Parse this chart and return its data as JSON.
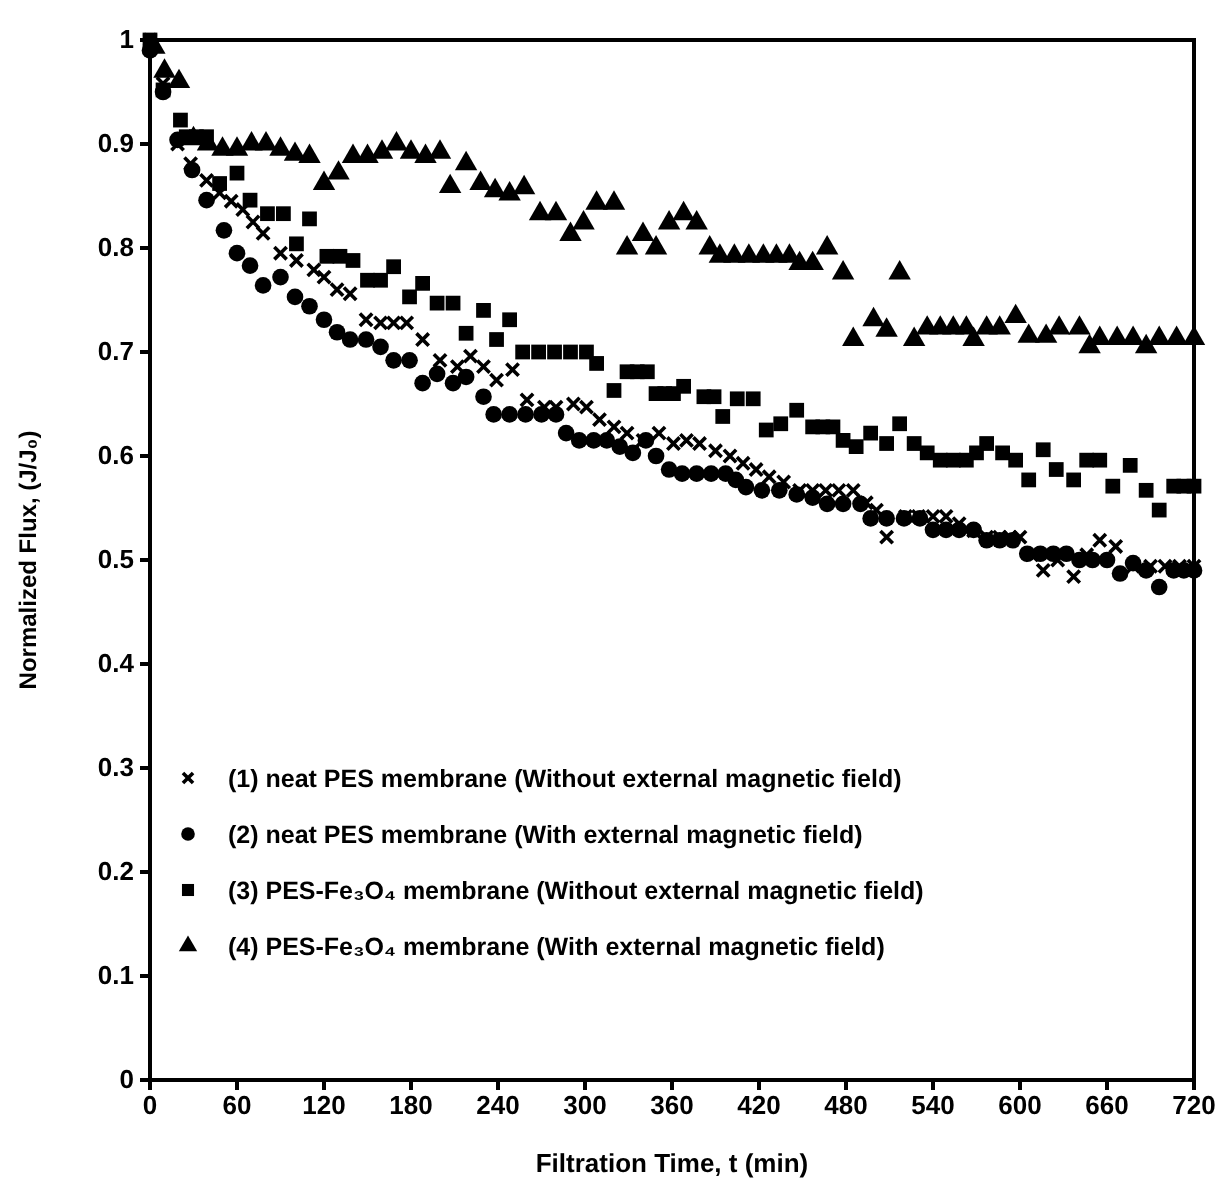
{
  "chart_data": {
    "type": "scatter",
    "xlabel": "Filtration Time, t (min)",
    "ylabel": "Normalized Flux, (J/J₀)",
    "xlim": [
      0,
      720
    ],
    "xticks": [
      0,
      60,
      120,
      180,
      240,
      300,
      360,
      420,
      480,
      540,
      600,
      660,
      720
    ],
    "ylim": [
      0,
      1
    ],
    "yticks": [
      0,
      0.1,
      0.2,
      0.3,
      0.4,
      0.5,
      0.6,
      0.7,
      0.8,
      0.9,
      1
    ],
    "grid": false,
    "legend": "bottom left",
    "series": [
      {
        "name": "(1) neat PES membrane (Without external magnetic field)",
        "color": "#000000",
        "marker": "cross",
        "x": [
          0,
          9,
          19,
          28,
          39,
          48,
          56,
          64,
          71,
          78,
          90,
          101,
          113,
          120,
          129,
          138,
          149,
          159,
          168,
          177,
          188,
          200,
          212,
          221,
          230,
          239,
          250,
          260,
          272,
          280,
          292,
          301,
          310,
          320,
          329,
          340,
          351,
          361,
          370,
          379,
          390,
          400,
          409,
          418,
          427,
          437,
          448,
          457,
          466,
          475,
          485,
          494,
          501,
          508,
          521,
          530,
          540,
          549,
          558,
          568,
          577,
          586,
          593,
          600,
          608,
          616,
          626,
          637,
          646,
          655,
          666,
          678,
          690,
          700,
          710,
          720
        ],
        "values": [
          1,
          0.958,
          0.9,
          0.881,
          0.865,
          0.853,
          0.845,
          0.837,
          0.825,
          0.814,
          0.795,
          0.788,
          0.779,
          0.772,
          0.76,
          0.756,
          0.731,
          0.728,
          0.728,
          0.728,
          0.712,
          0.692,
          0.686,
          0.696,
          0.686,
          0.673,
          0.683,
          0.654,
          0.647,
          0.647,
          0.65,
          0.647,
          0.635,
          0.628,
          0.622,
          0.615,
          0.622,
          0.612,
          0.615,
          0.612,
          0.605,
          0.6,
          0.593,
          0.587,
          0.58,
          0.575,
          0.567,
          0.567,
          0.567,
          0.567,
          0.567,
          0.555,
          0.548,
          0.522,
          0.542,
          0.542,
          0.542,
          0.542,
          0.535,
          0.528,
          0.522,
          0.522,
          0.522,
          0.522,
          0.505,
          0.49,
          0.5,
          0.484,
          0.505,
          0.519,
          0.513,
          0.494,
          0.494,
          0.494,
          0.494,
          0.494
        ]
      },
      {
        "name": "(2) neat PES membrane (With external magnetic field)",
        "color": "#000000",
        "marker": "circle",
        "x": [
          0,
          9,
          19,
          29,
          39,
          51,
          60,
          69,
          78,
          90,
          100,
          110,
          120,
          129,
          138,
          149,
          159,
          168,
          179,
          188,
          198,
          209,
          218,
          230,
          237,
          248,
          259,
          270,
          280,
          287,
          296,
          306,
          315,
          324,
          333,
          342,
          349,
          358,
          367,
          377,
          387,
          397,
          404,
          411,
          422,
          434,
          446,
          457,
          467,
          478,
          490,
          497,
          508,
          520,
          531,
          540,
          549,
          558,
          568,
          577,
          586,
          595,
          605,
          614,
          623,
          632,
          641,
          650,
          660,
          669,
          678,
          687,
          696,
          706,
          713,
          720
        ],
        "values": [
          0.99,
          0.95,
          0.904,
          0.875,
          0.846,
          0.817,
          0.795,
          0.783,
          0.764,
          0.772,
          0.753,
          0.744,
          0.731,
          0.719,
          0.712,
          0.712,
          0.705,
          0.692,
          0.692,
          0.67,
          0.679,
          0.67,
          0.676,
          0.657,
          0.64,
          0.64,
          0.64,
          0.64,
          0.64,
          0.622,
          0.615,
          0.615,
          0.615,
          0.609,
          0.603,
          0.615,
          0.6,
          0.587,
          0.583,
          0.583,
          0.583,
          0.583,
          0.577,
          0.57,
          0.567,
          0.567,
          0.563,
          0.56,
          0.554,
          0.554,
          0.554,
          0.54,
          0.54,
          0.54,
          0.54,
          0.529,
          0.529,
          0.529,
          0.529,
          0.519,
          0.519,
          0.519,
          0.506,
          0.506,
          0.506,
          0.506,
          0.5,
          0.5,
          0.5,
          0.487,
          0.497,
          0.49,
          0.474,
          0.49,
          0.49,
          0.49
        ]
      },
      {
        "name": "(3) PES-Fe₃O₄ membrane (Without external magnetic field)",
        "color": "#000000",
        "marker": "square",
        "x": [
          0,
          9,
          21,
          25,
          32,
          39,
          48,
          60,
          69,
          81,
          92,
          101,
          110,
          122,
          131,
          140,
          150,
          159,
          168,
          179,
          188,
          198,
          209,
          218,
          230,
          239,
          248,
          257,
          268,
          279,
          290,
          301,
          308,
          320,
          329,
          336,
          343,
          349,
          355,
          361,
          368,
          382,
          389,
          395,
          405,
          416,
          425,
          435,
          446,
          457,
          464,
          471,
          478,
          487,
          497,
          508,
          517,
          527,
          536,
          545,
          554,
          563,
          570,
          577,
          588,
          597,
          606,
          616,
          625,
          637,
          646,
          655,
          664,
          676,
          687,
          696,
          706,
          713,
          720
        ],
        "values": [
          1,
          0.952,
          0.923,
          0.907,
          0.907,
          0.907,
          0.862,
          0.872,
          0.846,
          0.833,
          0.833,
          0.804,
          0.828,
          0.792,
          0.792,
          0.788,
          0.769,
          0.769,
          0.782,
          0.753,
          0.766,
          0.747,
          0.747,
          0.718,
          0.74,
          0.712,
          0.731,
          0.7,
          0.7,
          0.7,
          0.7,
          0.7,
          0.689,
          0.663,
          0.681,
          0.681,
          0.681,
          0.66,
          0.66,
          0.66,
          0.667,
          0.657,
          0.657,
          0.638,
          0.655,
          0.655,
          0.625,
          0.631,
          0.644,
          0.628,
          0.628,
          0.628,
          0.615,
          0.609,
          0.622,
          0.612,
          0.631,
          0.612,
          0.603,
          0.596,
          0.596,
          0.596,
          0.603,
          0.612,
          0.603,
          0.596,
          0.577,
          0.606,
          0.587,
          0.577,
          0.596,
          0.596,
          0.571,
          0.591,
          0.567,
          0.548,
          0.571,
          0.571,
          0.571
        ]
      },
      {
        "name": "(4) PES-Fe₃O₄ membrane (With external magnetic field)",
        "color": "#000000",
        "marker": "triangle",
        "x": [
          3,
          10,
          20,
          30,
          40,
          50,
          60,
          70,
          80,
          90,
          100,
          110,
          120,
          130,
          140,
          150,
          160,
          170,
          180,
          190,
          200,
          207,
          218,
          228,
          238,
          248,
          258,
          269,
          280,
          290,
          299,
          308,
          320,
          329,
          340,
          349,
          358,
          368,
          377,
          386,
          393,
          403,
          413,
          423,
          432,
          441,
          448,
          457,
          467,
          478,
          485,
          499,
          508,
          517,
          527,
          536,
          545,
          554,
          563,
          568,
          577,
          586,
          597,
          606,
          618,
          627,
          641,
          648,
          655,
          667,
          678,
          687,
          696,
          708,
          720
        ],
        "values": [
          0.993,
          0.97,
          0.96,
          0.905,
          0.9,
          0.895,
          0.895,
          0.9,
          0.9,
          0.895,
          0.89,
          0.888,
          0.862,
          0.872,
          0.888,
          0.888,
          0.892,
          0.9,
          0.892,
          0.888,
          0.892,
          0.859,
          0.881,
          0.862,
          0.855,
          0.852,
          0.858,
          0.833,
          0.833,
          0.813,
          0.824,
          0.843,
          0.843,
          0.8,
          0.813,
          0.8,
          0.824,
          0.833,
          0.824,
          0.8,
          0.792,
          0.792,
          0.792,
          0.792,
          0.792,
          0.792,
          0.785,
          0.785,
          0.8,
          0.776,
          0.712,
          0.731,
          0.721,
          0.776,
          0.712,
          0.723,
          0.723,
          0.723,
          0.723,
          0.712,
          0.723,
          0.723,
          0.734,
          0.715,
          0.715,
          0.723,
          0.723,
          0.705,
          0.713,
          0.713,
          0.713,
          0.705,
          0.713,
          0.713,
          0.713
        ]
      }
    ]
  }
}
